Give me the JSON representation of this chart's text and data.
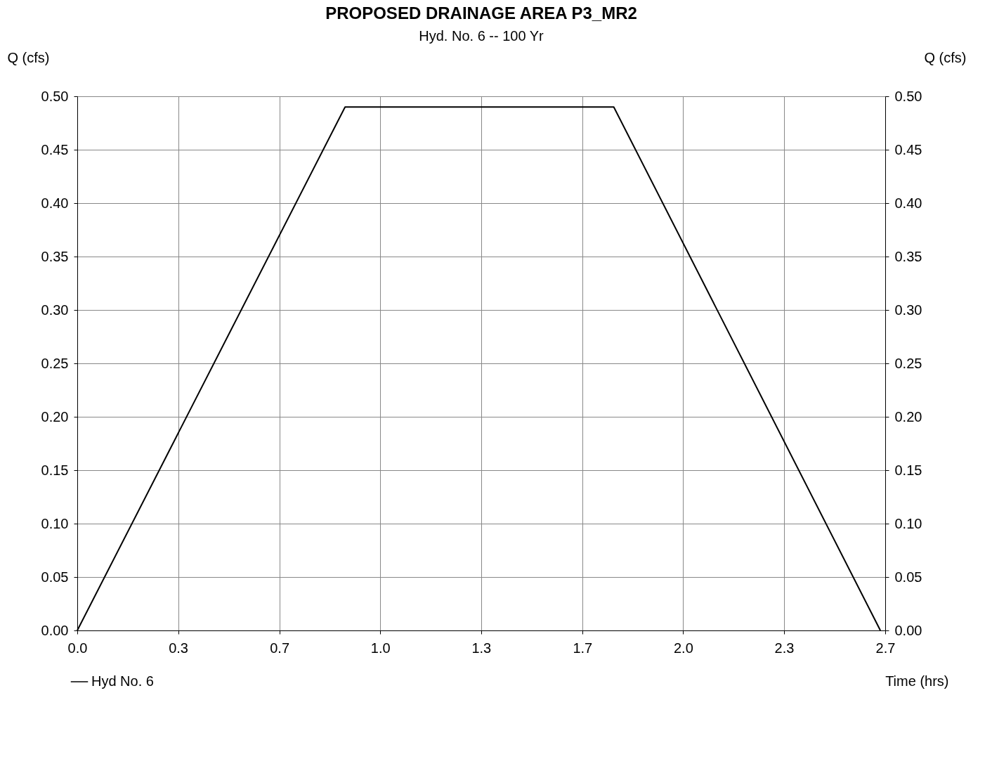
{
  "chart_data": {
    "type": "line",
    "title": "PROPOSED DRAINAGE AREA P3_MR2",
    "subtitle": "Hyd. No. 6 -- 100 Yr",
    "xlabel": "Time (hrs)",
    "ylabel": "Q (cfs)",
    "y2label": "Q (cfs)",
    "x": [
      0,
      0.884,
      1.771,
      2.651
    ],
    "series": [
      {
        "name": "Hyd No. 6",
        "color": "#000000",
        "values": [
          0,
          0.49,
          0.49,
          0
        ]
      }
    ],
    "xlim": [
      0,
      2.667
    ],
    "xticks": [
      {
        "value": 0,
        "label": "0.0"
      },
      {
        "value": 0.333,
        "label": "0.3"
      },
      {
        "value": 0.667,
        "label": "0.7"
      },
      {
        "value": 1,
        "label": "1.0"
      },
      {
        "value": 1.333,
        "label": "1.3"
      },
      {
        "value": 1.667,
        "label": "1.7"
      },
      {
        "value": 2,
        "label": "2.0"
      },
      {
        "value": 2.333,
        "label": "2.3"
      },
      {
        "value": 2.667,
        "label": "2.7"
      }
    ],
    "ylim": [
      0,
      0.5
    ],
    "yticks": [
      {
        "value": 0,
        "label": "0.00"
      },
      {
        "value": 0.05,
        "label": "0.05"
      },
      {
        "value": 0.1,
        "label": "0.10"
      },
      {
        "value": 0.15,
        "label": "0.15"
      },
      {
        "value": 0.2,
        "label": "0.20"
      },
      {
        "value": 0.25,
        "label": "0.25"
      },
      {
        "value": 0.3,
        "label": "0.30"
      },
      {
        "value": 0.35,
        "label": "0.35"
      },
      {
        "value": 0.4,
        "label": "0.40"
      },
      {
        "value": 0.45,
        "label": "0.45"
      },
      {
        "value": 0.5,
        "label": "0.50"
      }
    ],
    "y2lim": [
      0,
      0.5
    ],
    "y2ticks": [
      {
        "value": 0,
        "label": "0.00"
      },
      {
        "value": 0.05,
        "label": "0.05"
      },
      {
        "value": 0.1,
        "label": "0.10"
      },
      {
        "value": 0.15,
        "label": "0.15"
      },
      {
        "value": 0.2,
        "label": "0.20"
      },
      {
        "value": 0.25,
        "label": "0.25"
      },
      {
        "value": 0.3,
        "label": "0.30"
      },
      {
        "value": 0.35,
        "label": "0.35"
      },
      {
        "value": 0.4,
        "label": "0.40"
      },
      {
        "value": 0.45,
        "label": "0.45"
      },
      {
        "value": 0.5,
        "label": "0.50"
      }
    ],
    "grid": true,
    "legend": "bottom left",
    "marker": "none",
    "line_style": "solid"
  }
}
